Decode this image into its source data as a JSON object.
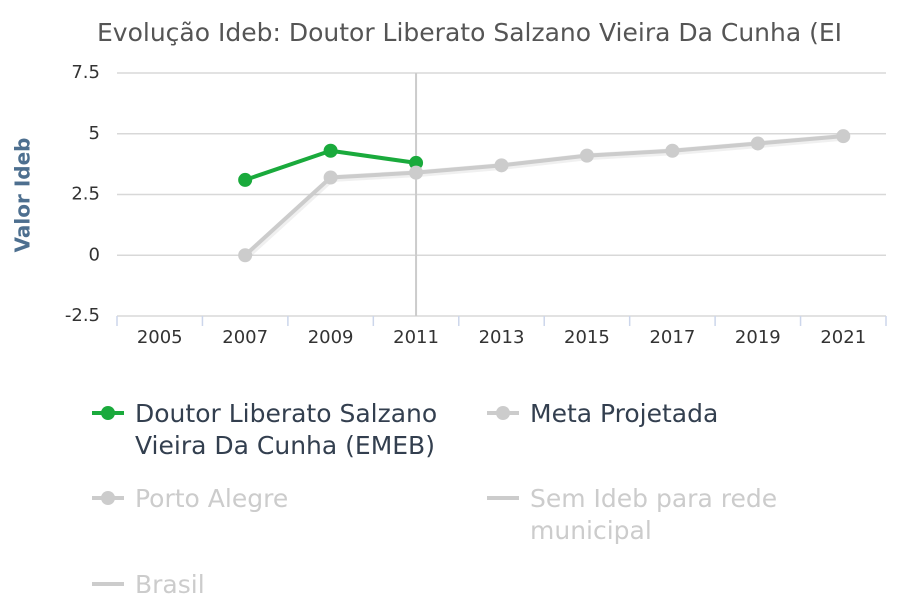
{
  "chart_data": {
    "type": "line",
    "title": "Evolução Ideb: Doutor Liberato Salzano Vieira Da Cunha (EI",
    "y_label": "Valor Ideb",
    "categories": [
      "2005",
      "2007",
      "2009",
      "2011",
      "2013",
      "2015",
      "2017",
      "2019",
      "2021"
    ],
    "ylim": [
      -2.5,
      7.5
    ],
    "yticks": [
      -2.5,
      0,
      2.5,
      5,
      7.5
    ],
    "grid": true,
    "series": [
      {
        "name": "Doutor Liberato Salzano Vieira Da Cunha (EMEB)",
        "color": "#1aaa3c",
        "marker": true,
        "visible": true,
        "values": [
          null,
          3.1,
          4.3,
          3.8,
          null,
          null,
          null,
          null,
          null
        ]
      },
      {
        "name": "Meta Projetada",
        "color": "#cccccc",
        "marker": true,
        "visible": true,
        "values": [
          null,
          0,
          3.2,
          3.4,
          3.7,
          4.1,
          4.3,
          4.6,
          4.9
        ]
      },
      {
        "name": "Porto Alegre",
        "color": "#cccccc",
        "marker": true,
        "visible": false,
        "values": [
          null,
          null,
          null,
          null,
          null,
          null,
          null,
          null,
          null
        ]
      },
      {
        "name": "Sem Ideb para rede municipal",
        "color": "#cccccc",
        "marker": false,
        "visible": false,
        "values": [
          null,
          null,
          null,
          null,
          null,
          null,
          null,
          null,
          null
        ]
      },
      {
        "name": "Brasil",
        "color": "#cccccc",
        "marker": false,
        "visible": false,
        "values": [
          null,
          null,
          null,
          null,
          null,
          null,
          null,
          null,
          null
        ]
      }
    ]
  }
}
